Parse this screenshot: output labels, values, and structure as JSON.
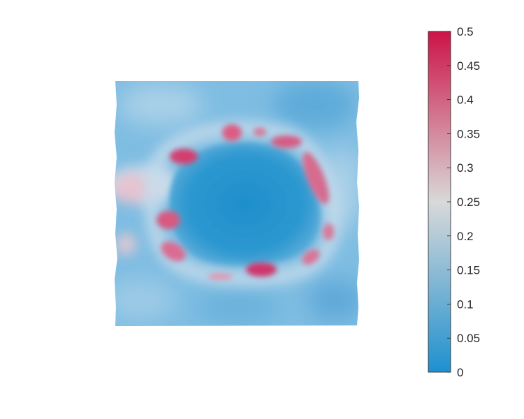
{
  "chart_data": {
    "type": "heatmap",
    "title": "",
    "xlabel": "",
    "ylabel": "",
    "axes_visible": false,
    "grid": false,
    "color_range": [
      0,
      0.5
    ],
    "colormap": {
      "low": "#1E90CF",
      "mid": "#D9D9D9",
      "high": "#CC1347",
      "mid_value": 0.25
    },
    "colorbar": {
      "position": "right",
      "ticks": [
        0,
        0.05,
        0.1,
        0.15,
        0.2,
        0.25,
        0.3,
        0.35,
        0.4,
        0.45,
        0.5
      ],
      "tick_labels": [
        "0",
        "0.05",
        "0.1",
        "0.15",
        "0.2",
        "0.25",
        "0.3",
        "0.35",
        "0.4",
        "0.45",
        "0.5"
      ]
    },
    "field_description_values": {
      "background": 0.12,
      "center_region": 0.06,
      "ring_highs": 0.42,
      "left_edge_highs": 0.3
    }
  }
}
